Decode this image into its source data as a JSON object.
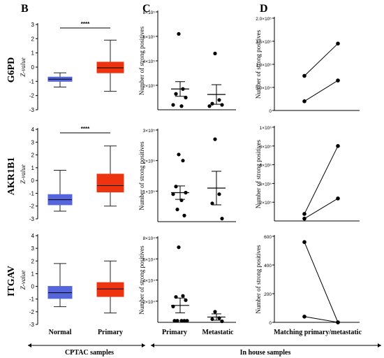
{
  "figure": {
    "panel_labels": [
      "B",
      "C",
      "D"
    ],
    "genes": [
      "G6PD",
      "AKR1B1",
      "ITGAV"
    ],
    "b_axis_label": "Z-value",
    "count_axis_label": "Number of strong positives",
    "b_categories": [
      "Normal",
      "Primary"
    ],
    "c_categories": [
      "Primary",
      "Metastatic"
    ],
    "d_category": "Matching primary/metastatic",
    "sig_label": "****",
    "cptac_label": "CPTAC samples",
    "inhouse_label": "In house samples",
    "colors": {
      "normal": "#5566dd",
      "primary": "#ee3311"
    }
  },
  "chart_data": [
    {
      "panel": "B",
      "gene": "G6PD",
      "type": "box",
      "ylabel": "Z-value",
      "ylim": [
        -3,
        3
      ],
      "ticks": [
        "-3",
        "-2",
        "-1",
        "0",
        "1",
        "2",
        "3"
      ],
      "categories": [
        "Normal",
        "Primary"
      ],
      "significance": "****",
      "boxes": [
        {
          "name": "Normal",
          "min": -1.4,
          "q1": -1.0,
          "median": -0.85,
          "q3": -0.7,
          "max": -0.4
        },
        {
          "name": "Primary",
          "min": -1.7,
          "q1": -0.4,
          "median": -0.05,
          "q3": 0.35,
          "max": 1.9
        }
      ]
    },
    {
      "panel": "B",
      "gene": "AKR1B1",
      "type": "box",
      "ylabel": "Z-value",
      "ylim": [
        -3,
        4
      ],
      "ticks": [
        "-3",
        "-2",
        "-1",
        "0",
        "1",
        "2",
        "3",
        "4"
      ],
      "categories": [
        "Normal",
        "Primary"
      ],
      "significance": "****",
      "boxes": [
        {
          "name": "Normal",
          "min": -2.4,
          "q1": -1.9,
          "median": -1.5,
          "q3": -1.1,
          "max": 0.8
        },
        {
          "name": "Primary",
          "min": -2.0,
          "q1": -0.9,
          "median": -0.4,
          "q3": 0.5,
          "max": 2.7
        }
      ]
    },
    {
      "panel": "B",
      "gene": "ITGAV",
      "type": "box",
      "ylabel": "Z-value",
      "ylim": [
        -3,
        4
      ],
      "ticks": [
        "-3",
        "-2",
        "-1",
        "0",
        "1",
        "2",
        "3",
        "4"
      ],
      "categories": [
        "Normal",
        "Primary"
      ],
      "boxes": [
        {
          "name": "Normal",
          "min": -1.6,
          "q1": -0.95,
          "median": -0.5,
          "q3": 0.0,
          "max": 1.8
        },
        {
          "name": "Primary",
          "min": -2.1,
          "q1": -0.8,
          "median": -0.2,
          "q3": 0.3,
          "max": 2.0
        }
      ]
    },
    {
      "panel": "C",
      "gene": "G6PD",
      "type": "scatter",
      "ylabel": "Number of strong positives",
      "ylim": [
        0,
        800000
      ],
      "ticks": [
        "2×10⁵",
        "4×10⁵",
        "6×10⁵",
        "8×10⁵"
      ],
      "tick_values": [
        200000,
        400000,
        600000,
        800000
      ],
      "categories": [
        "Primary",
        "Metastatic"
      ],
      "groups": [
        {
          "name": "Primary",
          "points": [
            620000,
            170000,
            130000,
            100000,
            40000,
            30000
          ],
          "mean": 170000,
          "sem": 60000
        },
        {
          "name": "Metastatic",
          "points": [
            460000,
            80000,
            50000,
            40000,
            30000
          ],
          "mean": 125000,
          "sem": 80000
        }
      ]
    },
    {
      "panel": "C",
      "gene": "AKR1B1",
      "type": "scatter",
      "ylabel": "Number of strong positives",
      "ylim": [
        0,
        300000
      ],
      "ticks": [
        "1×10⁵",
        "2×10⁵",
        "3×10⁵"
      ],
      "tick_values": [
        100000,
        200000,
        300000
      ],
      "categories": [
        "Primary",
        "Metastatic"
      ],
      "groups": [
        {
          "name": "Primary",
          "points": [
            220000,
            200000,
            115000,
            95000,
            90000,
            70000,
            40000,
            20000
          ],
          "mean": 95000,
          "sem": 22000
        },
        {
          "name": "Metastatic",
          "points": [
            270000,
            90000,
            60000,
            10000
          ],
          "mean": 110000,
          "sem": 55000
        }
      ]
    },
    {
      "panel": "C",
      "gene": "ITGAV",
      "type": "scatter",
      "ylabel": "Number of strong positives",
      "ylim": [
        0,
        80000
      ],
      "ticks": [
        "2×10⁴",
        "4×10⁴",
        "6×10⁴",
        "8×10⁴"
      ],
      "tick_values": [
        20000,
        40000,
        60000,
        80000
      ],
      "categories": [
        "Primary",
        "Metastatic"
      ],
      "groups": [
        {
          "name": "Primary",
          "points": [
            71000,
            25000,
            24000,
            21000,
            15000,
            1500,
            1500,
            1500,
            1500,
            1500
          ],
          "mean": 16000,
          "sem": 7000
        },
        {
          "name": "Metastatic",
          "points": [
            10000,
            4000,
            3000,
            1000
          ],
          "mean": 5000,
          "sem": 3000
        }
      ]
    },
    {
      "panel": "D",
      "gene": "G6PD",
      "type": "line",
      "ylabel": "Number of strong positives",
      "ylim": [
        0,
        200000
      ],
      "ticks": [
        "0",
        "5.0×10⁴",
        "1.0×10⁵",
        "1.5×10⁵",
        "2.0×10⁵"
      ],
      "tick_values": [
        0,
        50000,
        100000,
        150000,
        200000
      ],
      "x": [
        "Primary",
        "Metastatic"
      ],
      "series": [
        {
          "values": [
            75000,
            145000
          ]
        },
        {
          "values": [
            20000,
            65000
          ]
        }
      ]
    },
    {
      "panel": "D",
      "gene": "AKR1B1",
      "type": "line",
      "ylabel": "Number of strong positives",
      "ylim": [
        0,
        1000000
      ],
      "ticks": [
        "2×10⁵",
        "4×10⁵",
        "6×10⁵",
        "8×10⁵",
        "1×10⁶"
      ],
      "tick_values": [
        200000,
        400000,
        600000,
        800000,
        1000000
      ],
      "x": [
        "Primary",
        "Metastatic"
      ],
      "series": [
        {
          "values": [
            75000,
            800000
          ]
        },
        {
          "values": [
            25000,
            240000
          ]
        }
      ]
    },
    {
      "panel": "D",
      "gene": "ITGAV",
      "type": "line",
      "ylabel": "Number of strong positives",
      "ylim": [
        0,
        600
      ],
      "ticks": [
        "0",
        "200",
        "400",
        "600"
      ],
      "tick_values": [
        0,
        200,
        400,
        600
      ],
      "x": [
        "Primary",
        "Metastatic"
      ],
      "series": [
        {
          "values": [
            560,
            0
          ]
        },
        {
          "values": [
            40,
            0
          ]
        }
      ]
    }
  ]
}
